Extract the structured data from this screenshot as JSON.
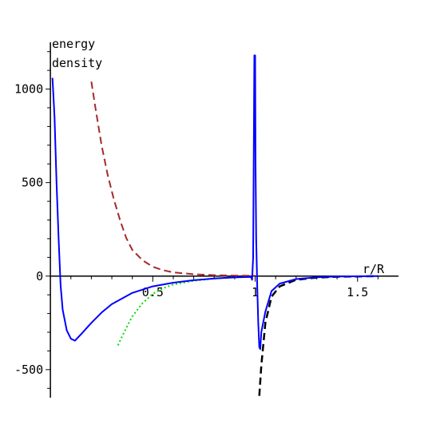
{
  "chart_data": {
    "type": "line",
    "title": "",
    "xlabel": "r/R",
    "ylabel_lines": [
      "energy",
      "density"
    ],
    "xlim": [
      -0.02,
      1.7
    ],
    "ylim": [
      -650,
      1250
    ],
    "x_ticks": [
      {
        "value": 0.5,
        "label": "0.5"
      },
      {
        "value": 1,
        "label": "1"
      },
      {
        "value": 1.5,
        "label": "1.5"
      }
    ],
    "y_ticks": [
      {
        "value": 1000,
        "label": "1000"
      },
      {
        "value": 500,
        "label": "500"
      },
      {
        "value": 0,
        "label": "0"
      },
      {
        "value": -500,
        "label": "-500"
      }
    ],
    "grid": false,
    "legend": "none",
    "series": [
      {
        "color": "#a52a2a",
        "style": "dashed",
        "width": 2,
        "points": [
          [
            0.2,
            1040
          ],
          [
            0.22,
            900
          ],
          [
            0.25,
            700
          ],
          [
            0.28,
            540
          ],
          [
            0.31,
            410
          ],
          [
            0.34,
            300
          ],
          [
            0.37,
            205
          ],
          [
            0.4,
            140
          ],
          [
            0.45,
            85
          ],
          [
            0.5,
            50
          ],
          [
            0.55,
            32
          ],
          [
            0.6,
            20
          ],
          [
            0.7,
            10
          ],
          [
            0.8,
            5
          ],
          [
            0.9,
            3
          ],
          [
            1.0,
            2
          ]
        ]
      },
      {
        "color": "#00dd00",
        "style": "dotted",
        "width": 2,
        "points": [
          [
            0.33,
            -370
          ],
          [
            0.36,
            -300
          ],
          [
            0.4,
            -215
          ],
          [
            0.45,
            -145
          ],
          [
            0.5,
            -95
          ],
          [
            0.55,
            -65
          ],
          [
            0.6,
            -45
          ],
          [
            0.7,
            -25
          ],
          [
            0.8,
            -13
          ],
          [
            0.9,
            -6
          ],
          [
            0.95,
            -4
          ]
        ]
      },
      {
        "color": "#000000",
        "style": "dashed",
        "width": 2.5,
        "points": [
          [
            1.02,
            -640
          ],
          [
            1.03,
            -480
          ],
          [
            1.05,
            -250
          ],
          [
            1.08,
            -110
          ],
          [
            1.12,
            -55
          ],
          [
            1.2,
            -20
          ],
          [
            1.3,
            -8
          ],
          [
            1.4,
            -3
          ],
          [
            1.6,
            0
          ]
        ]
      },
      {
        "color": "#0000ff",
        "style": "solid",
        "width": 2,
        "points": [
          [
            0.01,
            1060
          ],
          [
            0.02,
            850
          ],
          [
            0.03,
            500
          ],
          [
            0.04,
            200
          ],
          [
            0.05,
            -50
          ],
          [
            0.06,
            -180
          ],
          [
            0.08,
            -290
          ],
          [
            0.1,
            -335
          ],
          [
            0.12,
            -345
          ],
          [
            0.15,
            -310
          ],
          [
            0.2,
            -250
          ],
          [
            0.25,
            -195
          ],
          [
            0.3,
            -150
          ],
          [
            0.4,
            -90
          ],
          [
            0.5,
            -55
          ],
          [
            0.6,
            -35
          ],
          [
            0.7,
            -22
          ],
          [
            0.8,
            -13
          ],
          [
            0.9,
            -7
          ],
          [
            0.98,
            -4
          ],
          [
            0.985,
            -20
          ],
          [
            0.99,
            100
          ],
          [
            0.993,
            600
          ],
          [
            0.996,
            1180
          ],
          [
            1.0,
            1180
          ],
          [
            1.002,
            600
          ],
          [
            1.005,
            200
          ],
          [
            1.01,
            -50
          ],
          [
            1.015,
            -250
          ],
          [
            1.02,
            -380
          ],
          [
            1.025,
            -390
          ],
          [
            1.03,
            -300
          ],
          [
            1.05,
            -190
          ],
          [
            1.08,
            -80
          ],
          [
            1.12,
            -40
          ],
          [
            1.2,
            -16
          ],
          [
            1.3,
            -6
          ],
          [
            1.4,
            -2
          ],
          [
            1.5,
            -1
          ],
          [
            1.6,
            0
          ]
        ]
      }
    ]
  }
}
